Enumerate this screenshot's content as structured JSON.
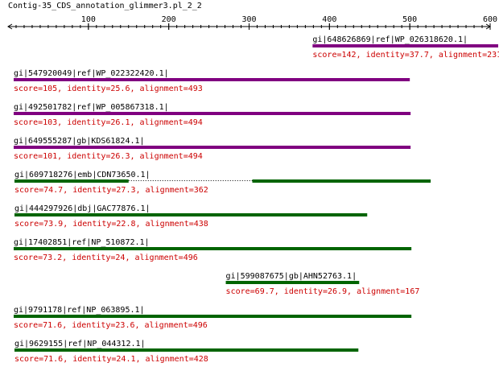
{
  "title": "Contig-35_CDS_annotation_glimmer3.pl_2_2",
  "axis": {
    "min": 0,
    "max": 600,
    "ticks": [
      100,
      200,
      300,
      400,
      500,
      600
    ]
  },
  "colors": {
    "purple": "#800080",
    "green": "#006400",
    "text": "#000000",
    "stats": "#cc0000",
    "link": "#000000"
  },
  "hits": [
    {
      "name": "gi|648626869|ref|WP_026318620.1|",
      "stats": "score=142, identity=37.7, alignment=231",
      "color": "purple",
      "segments": [
        [
          379,
          610
        ]
      ]
    },
    {
      "name": "gi|547920049|ref|WP_022322420.1|",
      "stats": "score=105, identity=25.6, alignment=493",
      "color": "purple",
      "segments": [
        [
          7,
          500
        ]
      ]
    },
    {
      "name": "gi|492501782|ref|WP_005867318.1|",
      "stats": "score=103, identity=26.1, alignment=494",
      "color": "purple",
      "segments": [
        [
          7,
          501
        ]
      ]
    },
    {
      "name": "gi|649555287|gb|KDS61824.1|",
      "stats": "score=101, identity=26.3, alignment=494",
      "color": "purple",
      "segments": [
        [
          7,
          501
        ]
      ]
    },
    {
      "name": "gi|609718276|emb|CDN73650.1|",
      "stats": "score=74.7, identity=27.3, alignment=362",
      "color": "green",
      "segments": [
        [
          8,
          150
        ],
        [
          304,
          526
        ]
      ]
    },
    {
      "name": "gi|444297926|dbj|GAC77876.1|",
      "stats": "score=73.9, identity=22.8, alignment=438",
      "color": "green",
      "segments": [
        [
          8,
          447
        ]
      ]
    },
    {
      "name": "gi|17402851|ref|NP_510872.1|",
      "stats": "score=73.2, identity=24, alignment=496",
      "color": "green",
      "segments": [
        [
          7,
          502
        ]
      ]
    },
    {
      "name": "gi|599087675|gb|AHN52763.1|",
      "stats": "score=69.7, identity=26.9, alignment=167",
      "color": "green",
      "segments": [
        [
          271,
          437
        ]
      ]
    },
    {
      "name": "gi|9791178|ref|NP_063895.1|",
      "stats": "score=71.6, identity=23.6, alignment=496",
      "color": "green",
      "segments": [
        [
          7,
          502
        ]
      ]
    },
    {
      "name": "gi|9629155|ref|NP_044312.1|",
      "stats": "score=71.6, identity=24.1, alignment=428",
      "color": "green",
      "segments": [
        [
          8,
          436
        ]
      ]
    }
  ]
}
